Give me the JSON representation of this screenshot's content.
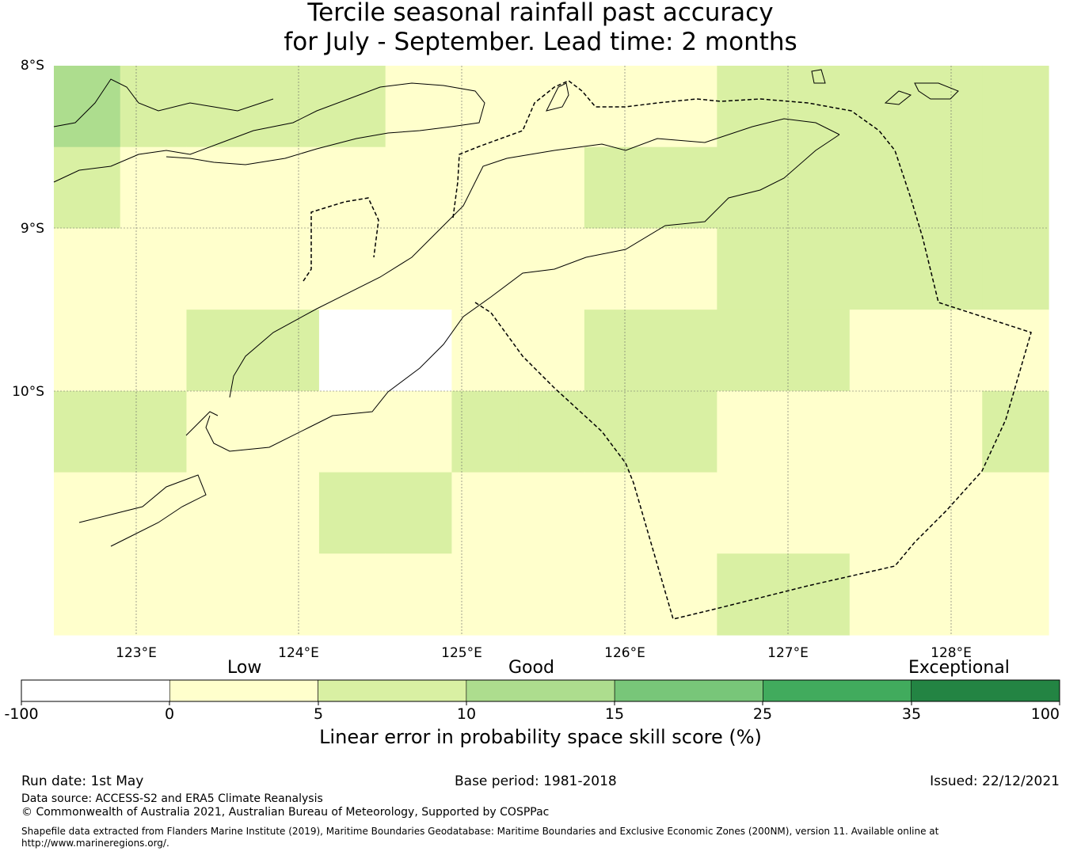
{
  "title": {
    "line1": "Tercile seasonal rainfall past accuracy",
    "line2": "for July - September. Lead time: 2 months"
  },
  "map": {
    "lat_labels": [
      "8°S",
      "9°S",
      "10°S"
    ],
    "lon_labels": [
      "123°E",
      "124°E",
      "125°E",
      "126°E",
      "127°E",
      "128°E"
    ],
    "grid_rows": [
      [
        "10-15",
        "5-10",
        "5-10",
        "5-10",
        "5-10",
        "0-5",
        "0-5",
        "0-5",
        "0-5",
        "0-5",
        "5-10",
        "5-10",
        "5-10",
        "5-10",
        "5-10"
      ],
      [
        "5-10",
        "0-5",
        "0-5",
        "0-5",
        "0-5",
        "0-5",
        "0-5",
        "0-5",
        "5-10",
        "5-10",
        "5-10",
        "5-10",
        "5-10",
        "5-10",
        "5-10"
      ],
      [
        "0-5",
        "0-5",
        "0-5",
        "0-5",
        "0-5",
        "0-5",
        "0-5",
        "0-5",
        "0-5",
        "0-5",
        "5-10",
        "5-10",
        "5-10",
        "5-10",
        "5-10"
      ],
      [
        "0-5",
        "0-5",
        "5-10",
        "5-10",
        "-100-0",
        "-100-0",
        "0-5",
        "0-5",
        "5-10",
        "5-10",
        "5-10",
        "5-10",
        "0-5",
        "0-5",
        "0-5"
      ],
      [
        "5-10",
        "5-10",
        "0-5",
        "0-5",
        "0-5",
        "0-5",
        "5-10",
        "5-10",
        "5-10",
        "5-10",
        "0-5",
        "0-5",
        "0-5",
        "0-5",
        "5-10"
      ],
      [
        "0-5",
        "0-5",
        "0-5",
        "0-5",
        "5-10",
        "5-10",
        "0-5",
        "0-5",
        "0-5",
        "0-5",
        "0-5",
        "0-5",
        "0-5",
        "0-5",
        "0-5"
      ],
      [
        "0-5",
        "0-5",
        "0-5",
        "0-5",
        "0-5",
        "0-5",
        "0-5",
        "0-5",
        "0-5",
        "0-5",
        "5-10",
        "5-10",
        "0-5",
        "0-5",
        "0-5"
      ]
    ]
  },
  "colorbar": {
    "categories": {
      "low": "Low",
      "good": "Good",
      "exceptional": "Exceptional"
    },
    "tick_labels": [
      "-100",
      "0",
      "5",
      "10",
      "15",
      "25",
      "35",
      "100"
    ],
    "colors": {
      "-100-0": "#ffffff",
      "0-5": "#ffffcc",
      "5-10": "#d9f0a3",
      "10-15": "#addd8e",
      "15-25": "#78c679",
      "25-35": "#41ab5d",
      "35-100": "#238443"
    },
    "bins": [
      "-100-0",
      "0-5",
      "5-10",
      "10-15",
      "15-25",
      "25-35",
      "35-100"
    ],
    "title": "Linear error in probability space skill score (%)"
  },
  "footer": {
    "run_date": "Run date: 1st May",
    "base_period": "Base period: 1981-2018",
    "issued": "Issued: 22/12/2021",
    "data_source": "Data source: ACCESS-S2 and ERA5 Climate Reanalysis",
    "copyright": "© Commonwealth of Australia 2021, Australian Bureau of Meteorology, Supported by COSPPac",
    "shapefile": "Shapefile data extracted from Flanders Marine Institute (2019), Maritime Boundaries Geodatabase: Maritime Boundaries and Exclusive Economic Zones (200NM), version 11. Available online at http://www.marineregions.org/."
  }
}
